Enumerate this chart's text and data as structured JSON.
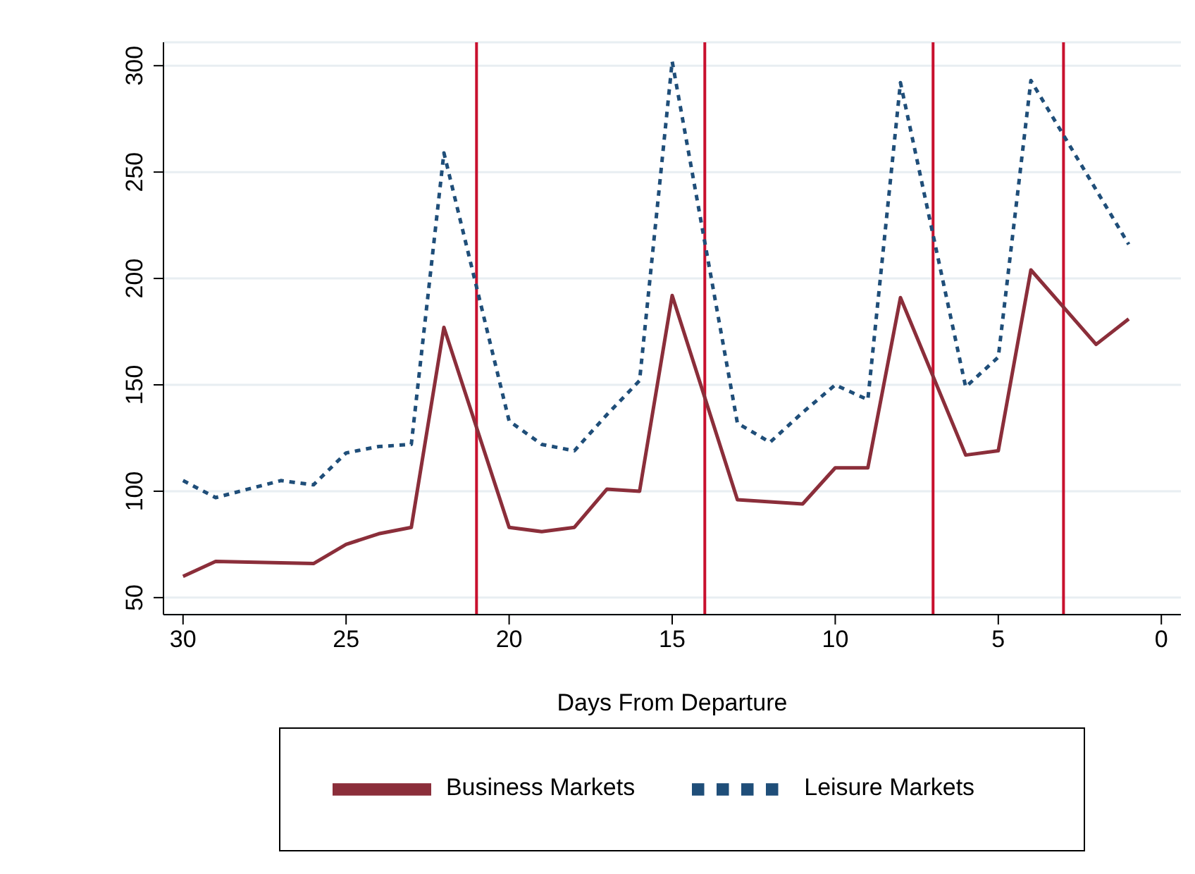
{
  "chart_data": {
    "type": "line",
    "xlabel": "Days From Departure",
    "xlim": [
      30.6,
      -0.6
    ],
    "xticks": [
      30,
      25,
      20,
      15,
      10,
      5,
      0
    ],
    "ylim": [
      42,
      311
    ],
    "yticks": [
      50,
      100,
      150,
      200,
      250,
      300
    ],
    "grid": "y",
    "legend": "bottom",
    "marker": "none",
    "series": [
      {
        "name": "Leisure Markets",
        "color": "#1f4e79",
        "line_style": "dashed",
        "x": [
          30,
          29,
          27,
          26,
          25,
          24,
          23,
          22,
          20,
          19,
          18,
          17,
          16,
          15,
          13,
          12,
          11,
          10,
          9,
          8,
          6,
          5,
          4,
          1
        ],
        "values": [
          105,
          97,
          105,
          103,
          118,
          121,
          122,
          259,
          133,
          122,
          119,
          136,
          152,
          302,
          132,
          123,
          137,
          150,
          143,
          292,
          149,
          163,
          293,
          216
        ]
      },
      {
        "name": "Business Markets",
        "color": "#8b2e3a",
        "line_style": "solid",
        "x": [
          30,
          29,
          26,
          25,
          24,
          23,
          22,
          20,
          19,
          18,
          17,
          16,
          15,
          13,
          12,
          11,
          10,
          9,
          8,
          6,
          5,
          4,
          2,
          1
        ],
        "values": [
          60,
          67,
          66,
          75,
          80,
          83,
          177,
          83,
          81,
          83,
          101,
          100,
          192,
          96,
          95,
          94,
          111,
          111,
          191,
          117,
          119,
          204,
          169,
          181
        ]
      }
    ],
    "ref_lines": [
      {
        "axis": "x",
        "value": 21,
        "color": "#c8102e"
      },
      {
        "axis": "x",
        "value": 14,
        "color": "#c8102e"
      },
      {
        "axis": "x",
        "value": 7,
        "color": "#c8102e"
      },
      {
        "axis": "x",
        "value": 3,
        "color": "#c8102e"
      }
    ]
  }
}
